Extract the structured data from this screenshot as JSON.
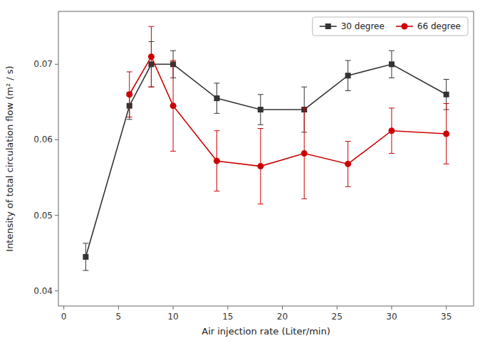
{
  "chart_data": {
    "type": "line",
    "xlabel": "Air injection rate (Liter/min)",
    "ylabel": "Intensity of total circulation flow (m² / s)",
    "series": [
      {
        "name": "30 degree",
        "color": "#333333",
        "marker": "square",
        "x": [
          2,
          6,
          8,
          10,
          14,
          18,
          22,
          26,
          30,
          35
        ],
        "values": [
          0.0445,
          0.0645,
          0.07,
          0.07,
          0.0655,
          0.064,
          0.064,
          0.0685,
          0.07,
          0.066
        ],
        "errors": [
          0.0018,
          0.0018,
          0.003,
          0.0018,
          0.002,
          0.002,
          0.003,
          0.002,
          0.0018,
          0.002
        ]
      },
      {
        "name": "66 degree",
        "color": "#cc0000",
        "marker": "circle",
        "x": [
          6,
          8,
          10,
          14,
          18,
          22,
          26,
          30,
          35
        ],
        "values": [
          0.066,
          0.071,
          0.0645,
          0.0572,
          0.0565,
          0.0582,
          0.0568,
          0.0612,
          0.0608
        ],
        "errors": [
          0.003,
          0.004,
          0.006,
          0.004,
          0.005,
          0.006,
          0.003,
          0.003,
          0.004
        ]
      }
    ],
    "xlim": [
      -0.5,
      37.5
    ],
    "ylim": [
      0.038,
      0.077
    ],
    "xticks": [
      0,
      5,
      10,
      15,
      20,
      25,
      30,
      35
    ],
    "yticks": [
      0.04,
      0.05,
      0.06,
      0.07
    ],
    "grid": false,
    "legend": "upper right"
  }
}
